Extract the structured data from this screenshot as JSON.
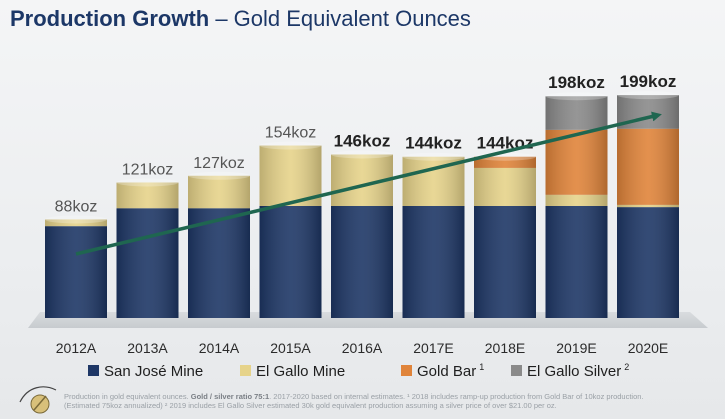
{
  "header": {
    "title_bold": "Production Growth",
    "title_rest": " – Gold Equivalent Ounces"
  },
  "colors": {
    "san_jose": "#1e3766",
    "el_gallo_mine": "#e6d38a",
    "gold_bar": "#e0843a",
    "el_gallo_silver": "#8a8a8a",
    "arrow": "#1f6650"
  },
  "chart_data": {
    "type": "bar",
    "stacked": true,
    "title": "Production Growth – Gold Equivalent Ounces",
    "categories": [
      "2012A",
      "2013A",
      "2014A",
      "2015A",
      "2016A",
      "2017E",
      "2018E",
      "2019E",
      "2020E"
    ],
    "series": [
      {
        "name": "San José Mine",
        "values": [
          82,
          98,
          98,
          100,
          100,
          100,
          100,
          100,
          99
        ]
      },
      {
        "name": "El Gallo Mine",
        "values": [
          6,
          23,
          29,
          54,
          46,
          44,
          34,
          10,
          2
        ]
      },
      {
        "name": "Gold Bar",
        "values": [
          0,
          0,
          0,
          0,
          0,
          0,
          10,
          58,
          68
        ]
      },
      {
        "name": "El Gallo Silver",
        "values": [
          0,
          0,
          0,
          0,
          0,
          0,
          0,
          30,
          30
        ]
      }
    ],
    "bar_labels": [
      "88koz",
      "121koz",
      "127koz",
      "154koz",
      "146koz",
      "144koz",
      "144koz",
      "198koz",
      "199koz"
    ],
    "bold_labels": [
      false,
      false,
      false,
      false,
      true,
      true,
      true,
      true,
      true
    ],
    "legend_superscripts": [
      "",
      "",
      "1",
      "2"
    ],
    "ylim": [
      0,
      220
    ],
    "legend_position": "bottom",
    "grid": false,
    "trend_arrow": true
  },
  "footer": {
    "line1_prefix": "Production in gold equivalent ounces. ",
    "line1_bold": "Gold / silver ratio 75:1",
    "line1_rest": ". 2017-2020 based on internal estimates. ¹ 2018 includes ramp-up production from Gold Bar of 10koz production.",
    "line2": "(Estimated 75koz annualized) ² 2019 includes El Gallo Silver estimated 30k gold equivalent production assuming a silver price of over $21.00 per oz."
  }
}
